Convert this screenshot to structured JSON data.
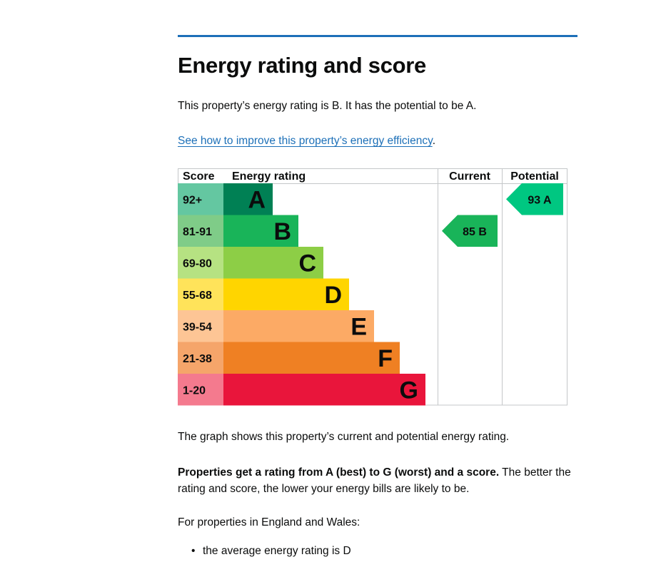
{
  "page": {
    "heading": "Energy rating and score",
    "summary": "This property’s energy rating is B. It has the potential to be A.",
    "improve_link": "See how to improve this property’s energy efficiency",
    "improve_link_suffix": ".",
    "graph_caption": "The graph shows this property’s current and potential energy rating.",
    "rating_intro_bold": "Properties get a rating from A (best) to G (worst) and a score.",
    "rating_intro_rest": " The better the rating and score, the lower your energy bills are likely to be.",
    "england_wales": "For properties in England and Wales:",
    "bullets": [
      "the average energy rating is D"
    ]
  },
  "chart_data": {
    "type": "table",
    "columns": [
      "Score",
      "Energy rating",
      "Current",
      "Potential"
    ],
    "bands": [
      {
        "band": "A",
        "score_range": "92+",
        "bar_color": "#008054",
        "score_color": "#64c7a1"
      },
      {
        "band": "B",
        "score_range": "81-91",
        "bar_color": "#19b459",
        "score_color": "#7fcc88"
      },
      {
        "band": "C",
        "score_range": "69-80",
        "bar_color": "#8dce46",
        "score_color": "#b6e282"
      },
      {
        "band": "D",
        "score_range": "55-68",
        "bar_color": "#ffd500",
        "score_color": "#ffe35a"
      },
      {
        "band": "E",
        "score_range": "39-54",
        "bar_color": "#fcaa65",
        "score_color": "#fdc595"
      },
      {
        "band": "F",
        "score_range": "21-38",
        "bar_color": "#ef8023",
        "score_color": "#f5a56a"
      },
      {
        "band": "G",
        "score_range": "1-20",
        "bar_color": "#e9153b",
        "score_color": "#f47a8e"
      }
    ],
    "current": {
      "score": 85,
      "band": "B",
      "label": "85  B",
      "color": "#19b459"
    },
    "potential": {
      "score": 93,
      "band": "A",
      "label": "93  A",
      "color": "#00c781"
    }
  }
}
